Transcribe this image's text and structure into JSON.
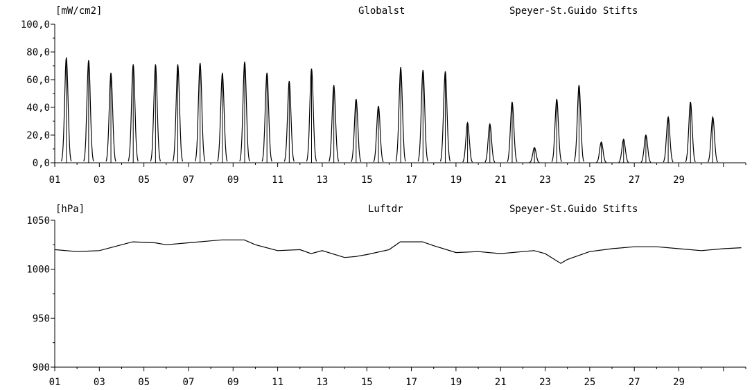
{
  "chart_data": [
    {
      "type": "line",
      "unit_label": "[mW/cm2]",
      "title": "Globalst",
      "station": "Speyer-St.Guido Stifts",
      "ylim": [
        0,
        100
      ],
      "y_tick_labels": [
        "0,0",
        "20,0",
        "40,0",
        "60,0",
        "80,0",
        "100,0"
      ],
      "xlim": [
        1,
        32
      ],
      "x_tick_labels": [
        "01",
        "03",
        "05",
        "07",
        "09",
        "11",
        "13",
        "15",
        "17",
        "19",
        "21",
        "23",
        "25",
        "27",
        "29"
      ],
      "daily_peak_values": [
        76,
        74,
        65,
        71,
        71,
        71,
        72,
        65,
        73,
        65,
        59,
        68,
        56,
        46,
        41,
        69,
        67,
        66,
        29,
        28,
        44,
        11,
        46,
        56,
        15,
        17,
        20,
        33,
        44,
        33
      ]
    },
    {
      "type": "line",
      "unit_label": "[hPa]",
      "title": "Luftdr",
      "station": "Speyer-St.Guido Stifts",
      "ylim": [
        900,
        1050
      ],
      "y_tick_labels": [
        "900",
        "950",
        "1000",
        "1050"
      ],
      "xlim": [
        1,
        32
      ],
      "x_tick_labels": [
        "01",
        "03",
        "05",
        "07",
        "09",
        "11",
        "13",
        "15",
        "17",
        "19",
        "21",
        "23",
        "25",
        "27",
        "29"
      ],
      "x": [
        1,
        2,
        3,
        4,
        4.5,
        5.5,
        6,
        7,
        8,
        8.5,
        9.5,
        10,
        11,
        12,
        12.5,
        13,
        14,
        14.5,
        15,
        16,
        16.5,
        17.5,
        18,
        19,
        20,
        21,
        22,
        22.5,
        23,
        23.7,
        24,
        25,
        26,
        27,
        28,
        29,
        30,
        31,
        31.8
      ],
      "y": [
        1020,
        1018,
        1019,
        1025,
        1028,
        1027,
        1025,
        1027,
        1029,
        1030,
        1030,
        1025,
        1019,
        1020,
        1016,
        1019,
        1012,
        1013,
        1015,
        1020,
        1028,
        1028,
        1024,
        1017,
        1018,
        1016,
        1018,
        1019,
        1016,
        1006,
        1010,
        1018,
        1021,
        1023,
        1023,
        1021,
        1019,
        1021,
        1022
      ]
    }
  ]
}
